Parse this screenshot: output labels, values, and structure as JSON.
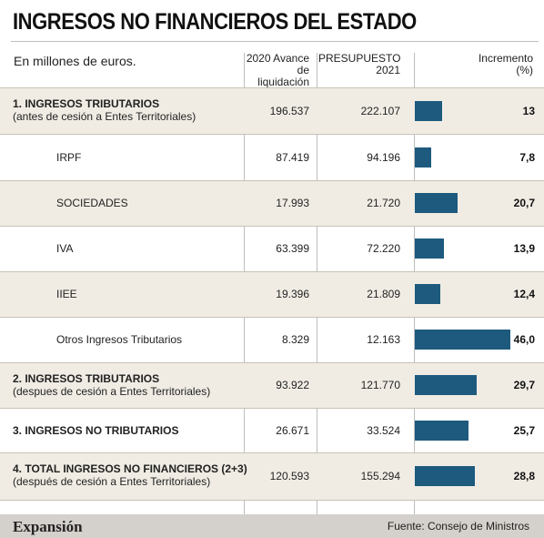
{
  "title": "INGRESOS NO FINANCIEROS DEL ESTADO",
  "subtitle": "En millones de euros.",
  "columns": {
    "col1_line1": "2020 Avance",
    "col1_line2": "de liquidación",
    "col2_line1": "PRESUPUESTO",
    "col2_line2": "2021",
    "col3_line1": "Incremento",
    "col3_line2": "(%)"
  },
  "rows": [
    {
      "label": "1. INGRESOS TRIBUTARIOS",
      "sublabel": "(antes de cesión a Entes Territoriales)",
      "v2020": "196.537",
      "v2021": "222.107",
      "inc": "13"
    },
    {
      "label": "IRPF",
      "sublabel": "",
      "v2020": "87.419",
      "v2021": "94.196",
      "inc": "7,8"
    },
    {
      "label": "SOCIEDADES",
      "sublabel": "",
      "v2020": "17.993",
      "v2021": "21.720",
      "inc": "20,7"
    },
    {
      "label": "IVA",
      "sublabel": "",
      "v2020": "63.399",
      "v2021": "72.220",
      "inc": "13,9"
    },
    {
      "label": "IIEE",
      "sublabel": "",
      "v2020": "19.396",
      "v2021": "21.809",
      "inc": "12,4"
    },
    {
      "label": "Otros Ingresos Tributarios",
      "sublabel": "",
      "v2020": "8.329",
      "v2021": "12.163",
      "inc": "46,0"
    },
    {
      "label": "2. INGRESOS TRIBUTARIOS",
      "sublabel": "(despues de cesión a Entes Territoriales)",
      "v2020": "93.922",
      "v2021": "121.770",
      "inc": "29,7"
    },
    {
      "label": "3. INGRESOS NO TRIBUTARIOS",
      "sublabel": "",
      "v2020": "26.671",
      "v2021": "33.524",
      "inc": "25,7"
    },
    {
      "label": "4. TOTAL INGRESOS NO FINANCIEROS (2+3)",
      "sublabel": "(después de cesión a Entes Territoriales)",
      "v2020": "120.593",
      "v2021": "155.294",
      "inc": "28,8"
    }
  ],
  "footer": {
    "brand": "Expansión",
    "source": "Fuente: Consejo de Ministros"
  },
  "chart_data": {
    "type": "bar",
    "categories": [
      "1. INGRESOS TRIBUTARIOS",
      "IRPF",
      "SOCIEDADES",
      "IVA",
      "IIEE",
      "Otros Ingresos Tributarios",
      "2. INGRESOS TRIBUTARIOS",
      "3. INGRESOS NO TRIBUTARIOS",
      "4. TOTAL INGRESOS NO FINANCIEROS (2+3)"
    ],
    "values": [
      13,
      7.8,
      20.7,
      13.9,
      12.4,
      46.0,
      29.7,
      25.7,
      28.8
    ],
    "orientation": "horizontal",
    "bar_color": "#1d5a7e"
  }
}
